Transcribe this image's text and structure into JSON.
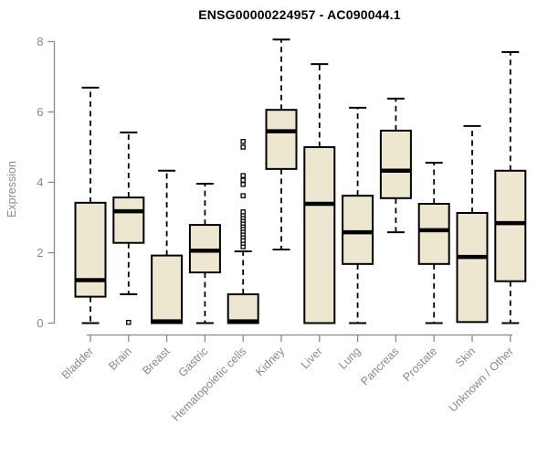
{
  "chart_data": {
    "type": "boxplot",
    "title": "ENSG00000224957 - AC090044.1",
    "ylabel": "Expression",
    "xlabel": "",
    "ylim": [
      0,
      8
    ],
    "yticks": [
      0,
      2,
      4,
      6,
      8
    ],
    "grid": false,
    "legend": "none",
    "categories": [
      "Bladder",
      "Brain",
      "Breast",
      "Gastric",
      "Hematopoietic cells",
      "Kidney",
      "Liver",
      "Lung",
      "Pancreas",
      "Prostate",
      "Skin",
      "Unknown / Other"
    ],
    "series": [
      {
        "name": "Bladder",
        "low": 0,
        "q1": 0.75,
        "median": 1.22,
        "q3": 3.42,
        "high": 6.69,
        "outliers": []
      },
      {
        "name": "Brain",
        "low": 0.82,
        "q1": 2.28,
        "median": 3.18,
        "q3": 3.57,
        "high": 5.42,
        "outliers": [
          0.02
        ]
      },
      {
        "name": "Breast",
        "low": 0,
        "q1": 0,
        "median": 0.05,
        "q3": 1.92,
        "high": 4.33,
        "outliers": []
      },
      {
        "name": "Gastric",
        "low": 0,
        "q1": 1.44,
        "median": 2.06,
        "q3": 2.79,
        "high": 3.96,
        "outliers": []
      },
      {
        "name": "Hematopoietic cells",
        "low": 0,
        "q1": 0,
        "median": 0.05,
        "q3": 0.82,
        "high": 2.04,
        "outliers": [
          2.17,
          2.27,
          2.35,
          2.45,
          2.53,
          2.61,
          2.69,
          2.77,
          2.84,
          2.92,
          3.0,
          3.08,
          3.16,
          3.62,
          3.94,
          4.06,
          4.19,
          5.0,
          5.16
        ]
      },
      {
        "name": "Kidney",
        "low": 2.09,
        "q1": 4.38,
        "median": 5.45,
        "q3": 6.06,
        "high": 8.06,
        "outliers": []
      },
      {
        "name": "Liver",
        "low": 0,
        "q1": 0,
        "median": 3.39,
        "q3": 5.0,
        "high": 7.36,
        "outliers": []
      },
      {
        "name": "Lung",
        "low": 0,
        "q1": 1.68,
        "median": 2.58,
        "q3": 3.62,
        "high": 6.12,
        "outliers": []
      },
      {
        "name": "Pancreas",
        "low": 2.58,
        "q1": 3.55,
        "median": 4.33,
        "q3": 5.47,
        "high": 6.38,
        "outliers": []
      },
      {
        "name": "Prostate",
        "low": 0,
        "q1": 1.68,
        "median": 2.64,
        "q3": 3.39,
        "high": 4.56,
        "outliers": []
      },
      {
        "name": "Skin",
        "low": 0.03,
        "q1": 0.03,
        "median": 1.88,
        "q3": 3.13,
        "high": 5.6,
        "outliers": []
      },
      {
        "name": "Unknown / Other",
        "low": 0,
        "q1": 1.19,
        "median": 2.84,
        "q3": 4.33,
        "high": 7.7,
        "outliers": []
      }
    ],
    "colors": {
      "box_fill": "#ece7ce",
      "box_stroke": "#000000",
      "median": "#000000",
      "whisker": "#000000",
      "outlier_stroke": "#000000",
      "outlier_fill": "#ffffff",
      "axis": "#898989",
      "tick_label": "#898989",
      "title": "#000000",
      "background": "#ffffff"
    }
  }
}
